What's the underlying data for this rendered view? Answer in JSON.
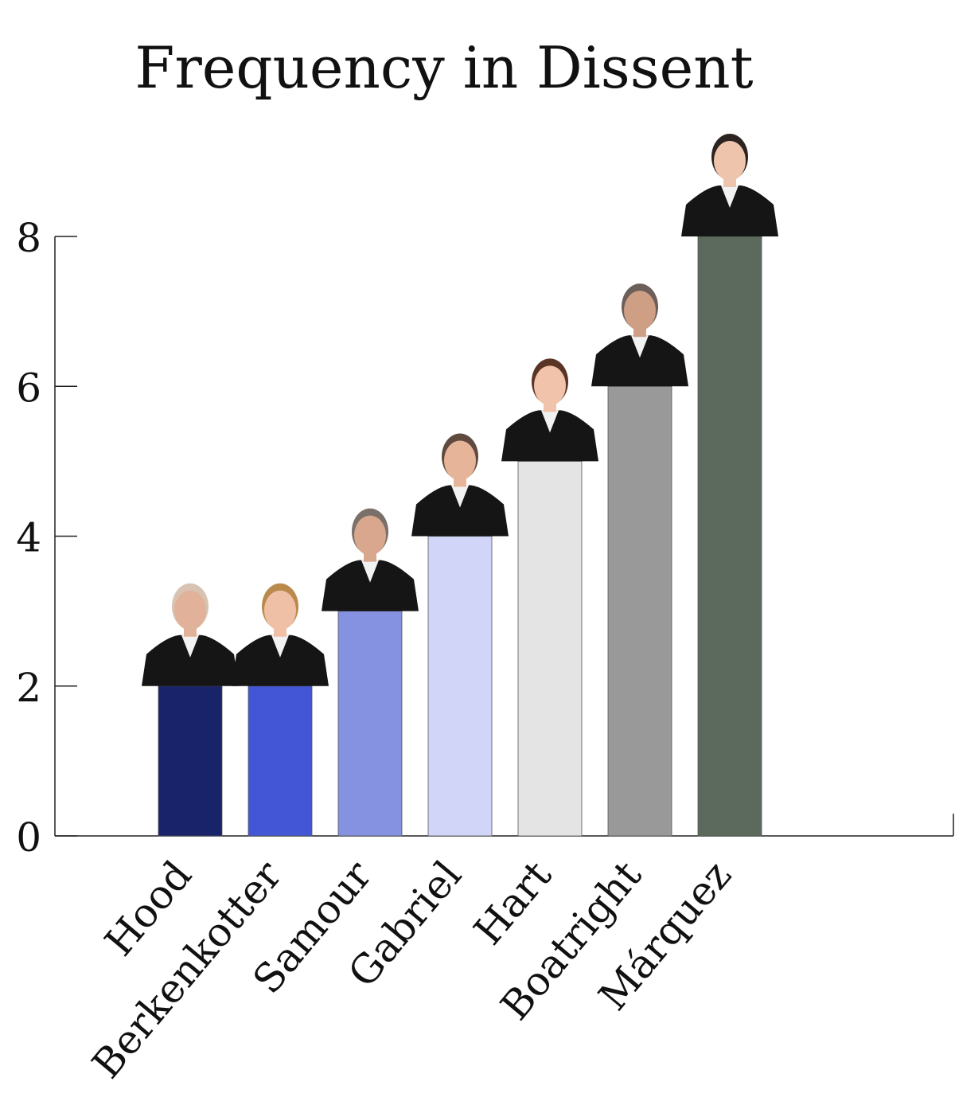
{
  "chart_data": {
    "type": "bar",
    "title": "Frequency in Dissent",
    "xlabel": "",
    "ylabel": "",
    "categories": [
      "Hood",
      "Berkenkotter",
      "Samour",
      "Gabriel",
      "Hart",
      "Boatright",
      "Márquez"
    ],
    "values": [
      2,
      2,
      3,
      4,
      5,
      6,
      8
    ],
    "colors": [
      "#18236a",
      "#4256d6",
      "#8591e1",
      "#d1d6f8",
      "#e4e4e4",
      "#999999",
      "#5c6a5e"
    ],
    "yticks": [
      0,
      2,
      4,
      6,
      8
    ],
    "ylim": [
      0,
      8.5
    ],
    "grid": false,
    "legend": "none",
    "bar_decoration": "portrait-photo"
  }
}
